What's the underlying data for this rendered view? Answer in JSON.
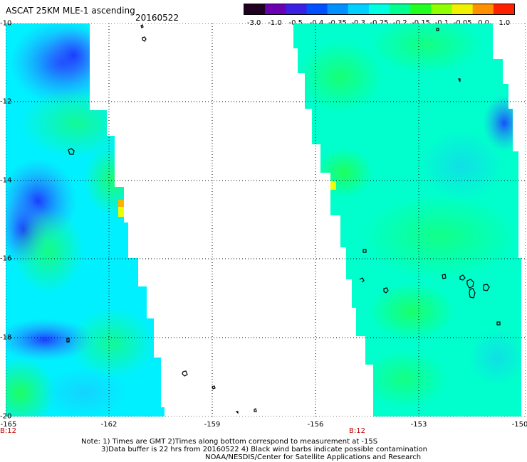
{
  "title": "ASCAT 25KM MLE-1 ascending",
  "date": "20160522",
  "colorbar": {
    "labels": [
      "-3.0",
      "-1.0",
      "-0.5",
      "-0.4",
      "-0.35",
      "-0.3",
      "-0.25",
      "-0.2",
      "-0.15",
      "-0.1",
      "-0.05",
      "0.0",
      "1.0"
    ],
    "colors": [
      "#200020",
      "#6a00b0",
      "#3a20e0",
      "#0050ff",
      "#0090ff",
      "#00d0ff",
      "#00ffe0",
      "#00ff90",
      "#20ff20",
      "#90ff00",
      "#f0f000",
      "#ff9000",
      "#ff2000"
    ]
  },
  "axes": {
    "lat_labels": [
      "-10",
      "-12",
      "-14",
      "-16",
      "-18",
      "-20"
    ],
    "lon_labels": [
      "-165",
      "-162",
      "-159",
      "-156",
      "-153",
      "-150"
    ]
  },
  "time_labels": [
    "B:12",
    "B:12"
  ],
  "notes": {
    "line1": "Note: 1) Times are GMT 2)Times along bottom correspond to measurement at -15S",
    "line2": "3)Data buffer is 22 hrs from 20160522 4) Black wind barbs indicate possible contamination",
    "line3": "NOAA/NESDIS/Center for Satellite Applications and Research"
  },
  "swath_colors": {
    "deep_blue": "#1a3cff",
    "blue": "#3a8cff",
    "light_blue": "#20c0ff",
    "cyan": "#00ffee",
    "green_cyan": "#00ffa8",
    "green": "#20ff50",
    "yellow": "#f0ff00",
    "orange": "#ffb000"
  }
}
